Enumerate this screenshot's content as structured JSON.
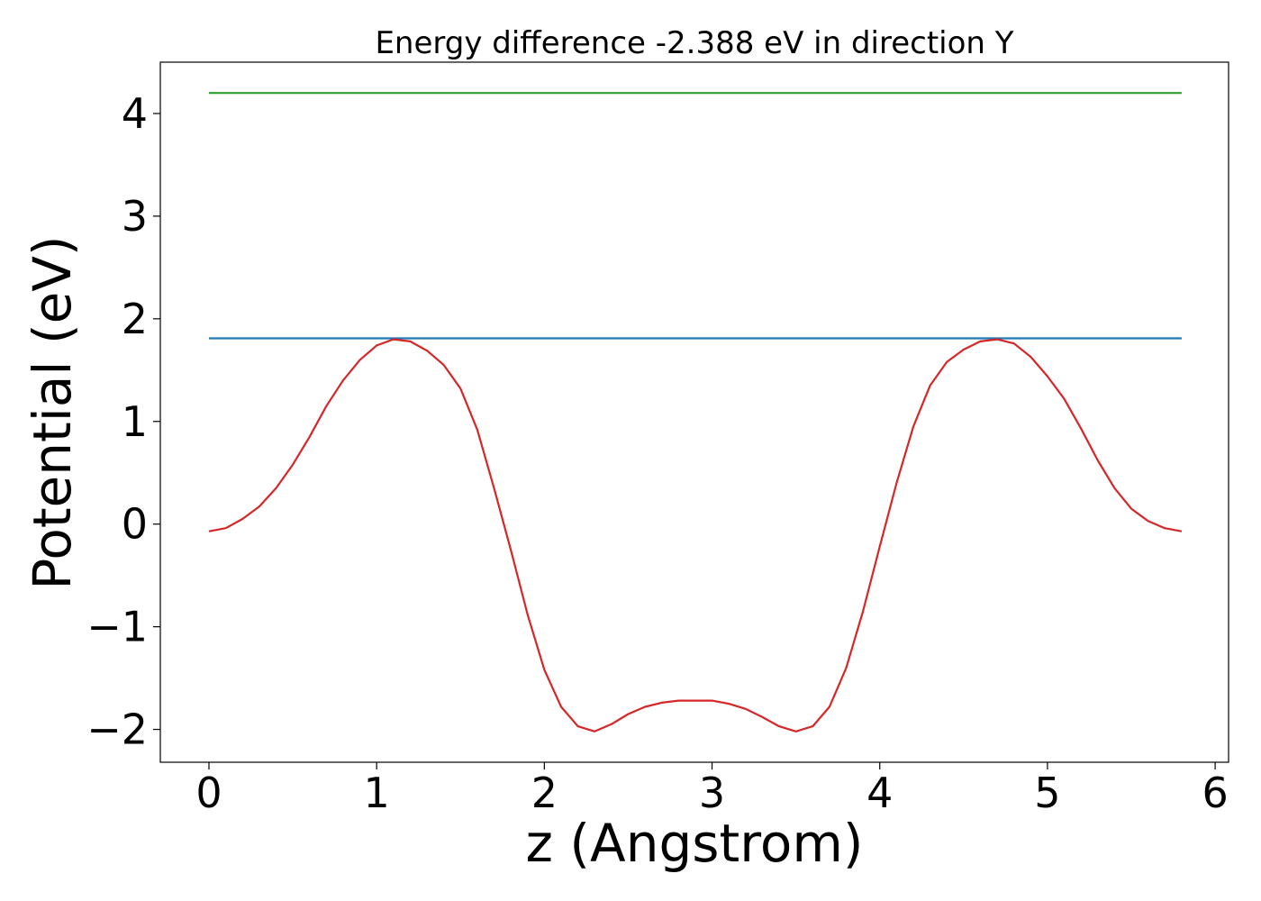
{
  "chart_data": {
    "type": "line",
    "title": "Energy difference -2.388 eV in direction Y",
    "xlabel": "z (Angstrom)",
    "ylabel": "Potential (eV)",
    "xlim": [
      -0.29,
      6.08
    ],
    "ylim": [
      -2.32,
      4.5
    ],
    "xticks": [
      0,
      1,
      2,
      3,
      4,
      5,
      6
    ],
    "xtick_labels": [
      "0",
      "1",
      "2",
      "3",
      "4",
      "5",
      "6"
    ],
    "yticks": [
      -2,
      -1,
      0,
      1,
      2,
      3,
      4
    ],
    "ytick_labels": [
      "−2",
      "−1",
      "0",
      "1",
      "2",
      "3",
      "4"
    ],
    "grid": false,
    "series": [
      {
        "color": "#2ca02c",
        "x": [
          0,
          5.8
        ],
        "y": [
          4.2,
          4.2
        ]
      },
      {
        "color": "#1f77b4",
        "x": [
          0,
          5.8
        ],
        "y": [
          1.81,
          1.81
        ]
      },
      {
        "color": "#d62728",
        "x": [
          0,
          0.1,
          0.2,
          0.3,
          0.4,
          0.5,
          0.6,
          0.7,
          0.8,
          0.9,
          1.0,
          1.1,
          1.2,
          1.3,
          1.4,
          1.5,
          1.6,
          1.7,
          1.8,
          1.9,
          2.0,
          2.1,
          2.2,
          2.3,
          2.4,
          2.5,
          2.6,
          2.7,
          2.8,
          2.9,
          3.0,
          3.1,
          3.2,
          3.3,
          3.4,
          3.5,
          3.6,
          3.7,
          3.8,
          3.9,
          4.0,
          4.1,
          4.2,
          4.3,
          4.4,
          4.5,
          4.6,
          4.7,
          4.8,
          4.9,
          5.0,
          5.1,
          5.2,
          5.3,
          5.4,
          5.5,
          5.6,
          5.7,
          5.8
        ],
        "y": [
          -0.07,
          -0.04,
          0.05,
          0.17,
          0.35,
          0.58,
          0.85,
          1.15,
          1.4,
          1.6,
          1.74,
          1.8,
          1.78,
          1.69,
          1.55,
          1.32,
          0.92,
          0.35,
          -0.25,
          -0.88,
          -1.42,
          -1.78,
          -1.97,
          -2.02,
          -1.95,
          -1.85,
          -1.78,
          -1.74,
          -1.72,
          -1.72,
          -1.72,
          -1.75,
          -1.8,
          -1.88,
          -1.97,
          -2.02,
          -1.97,
          -1.78,
          -1.4,
          -0.85,
          -0.22,
          0.4,
          0.95,
          1.35,
          1.58,
          1.7,
          1.78,
          1.8,
          1.76,
          1.63,
          1.44,
          1.22,
          0.93,
          0.62,
          0.35,
          0.15,
          0.03,
          -0.04,
          -0.07
        ]
      }
    ]
  }
}
